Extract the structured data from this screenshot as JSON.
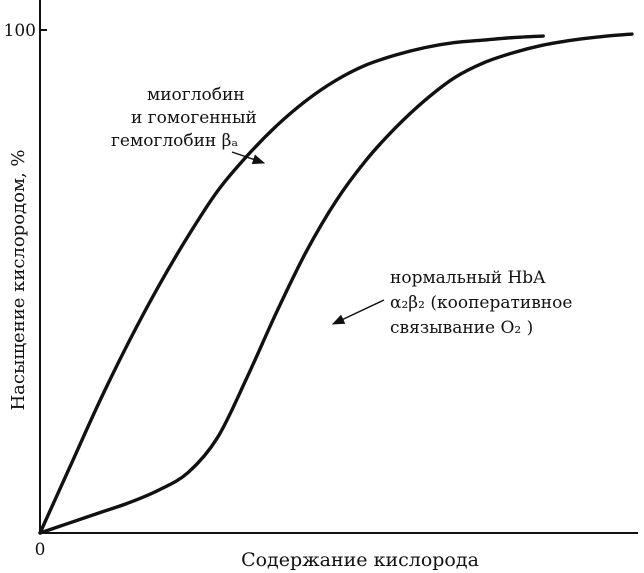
{
  "chart_data": {
    "type": "line",
    "title": "",
    "xlabel": "Содержание кислорода",
    "ylabel": "Насыщение кислородом, %",
    "xlim": [
      0,
      100
    ],
    "ylim": [
      0,
      100
    ],
    "y_ticks": [
      {
        "value": 0,
        "label": "0"
      },
      {
        "value": 100,
        "label": "100"
      }
    ],
    "grid": false,
    "legend": "none",
    "series": [
      {
        "annotation": [
          "миоглобин",
          "и гомогенный",
          "гемоглобин βₐ"
        ],
        "x": [
          0,
          5,
          10,
          15,
          20,
          25,
          30,
          35,
          40,
          45,
          50,
          55,
          60,
          65,
          70,
          75,
          80,
          85
        ],
        "y": [
          0,
          13,
          26,
          38,
          49,
          59,
          68,
          75,
          81,
          86,
          90,
          93,
          95,
          96.5,
          97.5,
          98,
          98.5,
          98.8
        ]
      },
      {
        "annotation": [
          "нормальный HbA",
          "α₂β₂   (кооперативное",
          "связывание O₂ )"
        ],
        "x": [
          0,
          5,
          10,
          15,
          20,
          25,
          30,
          35,
          40,
          45,
          50,
          55,
          60,
          65,
          70,
          75,
          80,
          85,
          90,
          95,
          100
        ],
        "y": [
          0,
          2,
          4,
          6,
          8.5,
          12,
          19,
          31,
          44,
          56,
          66,
          74,
          80.5,
          86,
          90.5,
          93.5,
          95.5,
          97,
          98,
          98.7,
          99.2
        ]
      }
    ]
  }
}
